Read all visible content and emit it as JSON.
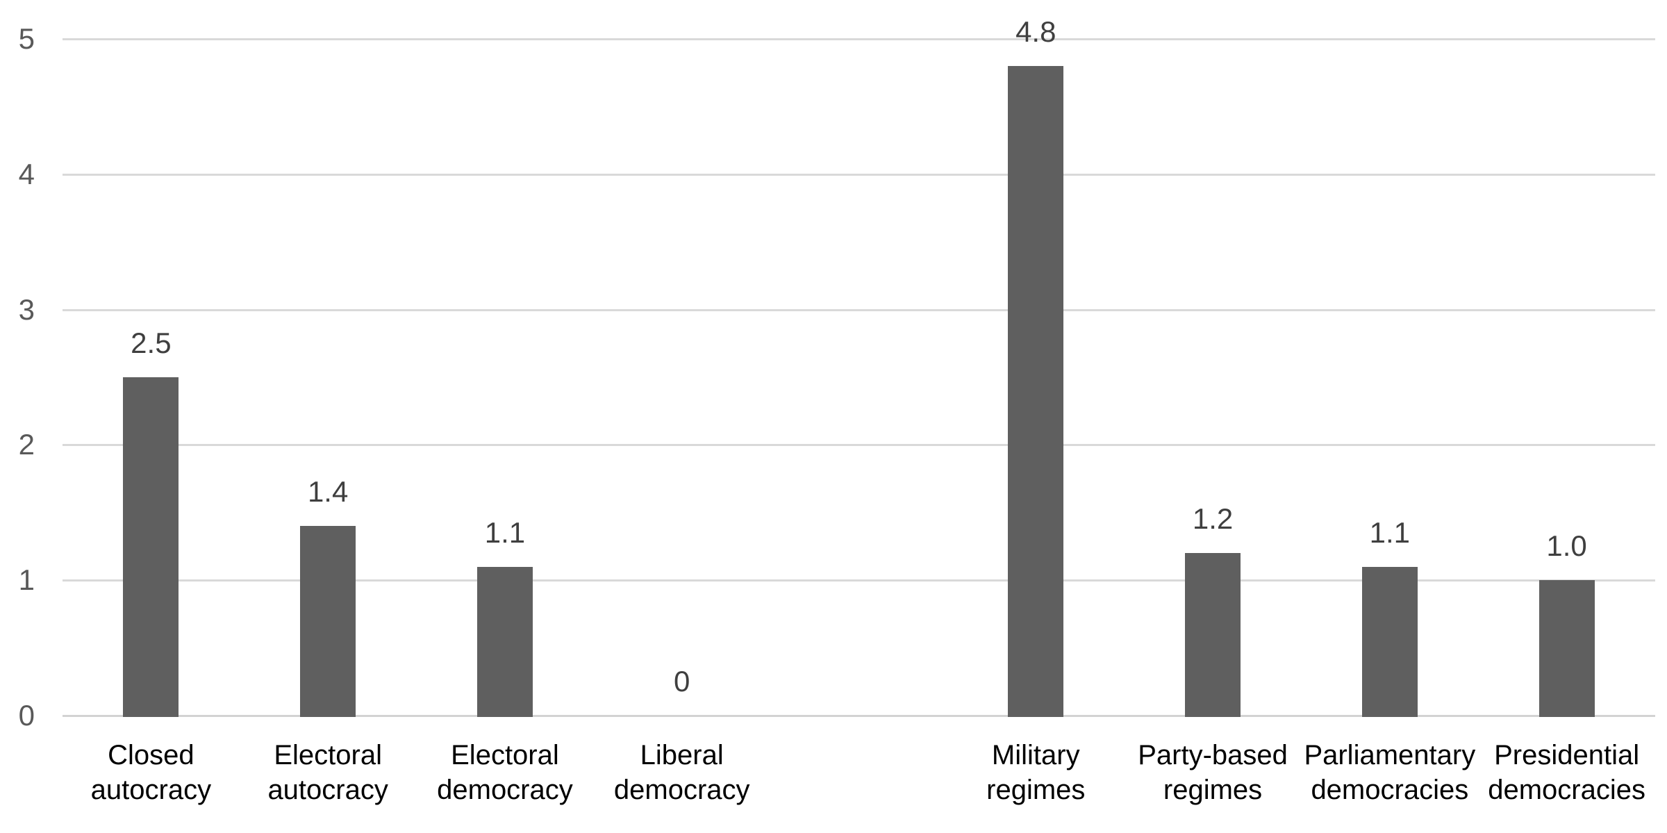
{
  "chart_data": {
    "type": "bar",
    "title": "",
    "xlabel": "",
    "ylabel": "",
    "categories": [
      "Closed\nautocracy",
      "Electoral\nautocracy",
      "Electoral\ndemocracy",
      "Liberal\ndemocracy",
      "",
      "Military\nregimes",
      "Party-based\nregimes",
      "Parliamentary\ndemocracies",
      "Presidential\ndemocracies"
    ],
    "values": [
      2.5,
      1.4,
      1.1,
      0,
      null,
      4.8,
      1.2,
      1.1,
      1.0
    ],
    "data_labels": [
      "2.5",
      "1.4",
      "1.1",
      "0",
      "",
      "4.8",
      "1.2",
      "1.1",
      "1.0"
    ],
    "y_ticks": [
      "0",
      "1",
      "2",
      "3",
      "4",
      "5"
    ],
    "ylim": [
      0,
      5
    ],
    "grid": true,
    "legend": false,
    "colors": {
      "bar": "#5F5F5F",
      "gridline": "#D9D9D9",
      "axis_line": "#D3D3D3",
      "y_tick_label": "#595959",
      "data_label": "#3F3F3F",
      "category_label": "#000000",
      "background": "#FFFFFF"
    }
  }
}
